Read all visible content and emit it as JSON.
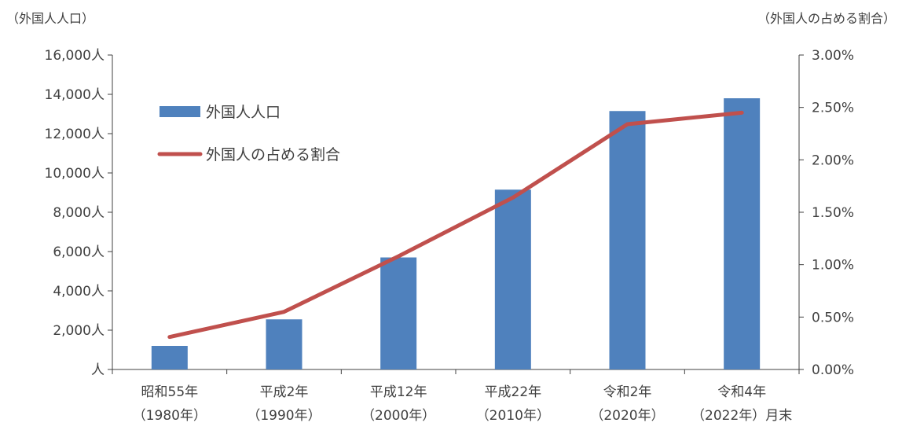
{
  "chart_data": {
    "type": "bar+line",
    "categories": [
      [
        "昭和55年",
        "（1980年）"
      ],
      [
        "平成2年",
        "（1990年）"
      ],
      [
        "平成12年",
        "（2000年）"
      ],
      [
        "平成22年",
        "（2010年）"
      ],
      [
        "令和2年",
        "（2020年）"
      ],
      [
        "令和4年",
        "（2022年）月末"
      ]
    ],
    "left_unit_label": "（外国人人口）",
    "right_unit_label": "（外国人の占める割合）",
    "ylim_left": [
      0,
      16000
    ],
    "ylim_right": [
      0,
      3.0
    ],
    "left_ticks": [
      {
        "value": 0,
        "label": "人"
      },
      {
        "value": 2000,
        "label": "2,000人"
      },
      {
        "value": 4000,
        "label": "4,000人"
      },
      {
        "value": 6000,
        "label": "6,000人"
      },
      {
        "value": 8000,
        "label": "8,000人"
      },
      {
        "value": 10000,
        "label": "10,000人"
      },
      {
        "value": 12000,
        "label": "12,000人"
      },
      {
        "value": 14000,
        "label": "14,000人"
      },
      {
        "value": 16000,
        "label": "16,000人"
      }
    ],
    "right_ticks": [
      {
        "value": 0,
        "label": "0.00%"
      },
      {
        "value": 0.5,
        "label": "0.50%"
      },
      {
        "value": 1.0,
        "label": "1.00%"
      },
      {
        "value": 1.5,
        "label": "1.50%"
      },
      {
        "value": 2.0,
        "label": "2.00%"
      },
      {
        "value": 2.5,
        "label": "2.50%"
      },
      {
        "value": 3.0,
        "label": "3.00%"
      }
    ],
    "series": [
      {
        "name": "外国人人口",
        "type": "bar",
        "axis": "left",
        "color": "#4F81BD",
        "values": [
          1200,
          2550,
          5700,
          9150,
          13150,
          13800
        ]
      },
      {
        "name": "外国人の占める割合",
        "type": "line",
        "axis": "right",
        "color": "#C0504D",
        "values": [
          0.31,
          0.55,
          1.08,
          1.64,
          2.34,
          2.45
        ]
      }
    ],
    "legend_position": "top-left",
    "grid": false
  }
}
